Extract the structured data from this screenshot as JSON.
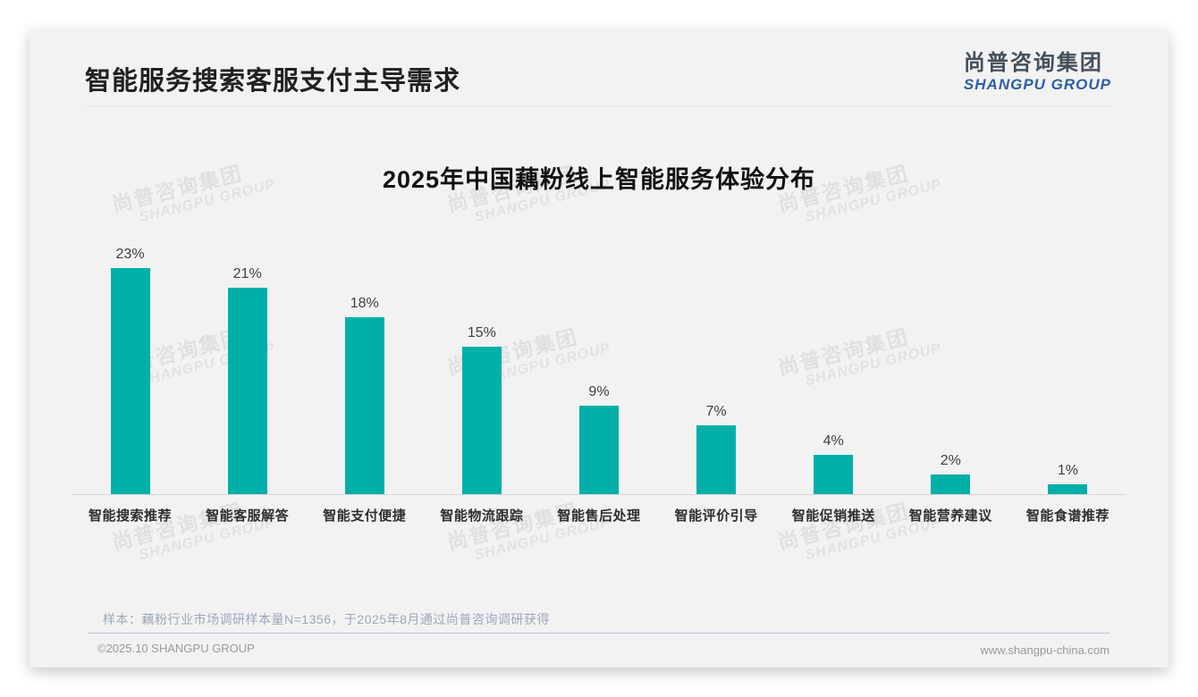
{
  "page": {
    "header": {
      "title": "智能服务搜索客服支付主导需求"
    },
    "logo": {
      "zh": "尚普咨询集团",
      "en": "SHANGPU GROUP"
    },
    "watermark": {
      "zh": "尚普咨询集团",
      "en": "SHANGPU GROUP"
    },
    "note": "样本：藕粉行业市场调研样本量N=1356，于2025年8月通过尚普咨询调研获得",
    "footer": {
      "left": "©2025.10 SHANGPU GROUP",
      "right": "www.shangpu-china.com"
    }
  },
  "colors": {
    "bar": "#00afa8",
    "logo_blue": "#2e5ea6",
    "card_background": "#f2f2f3",
    "note_text": "#9ca8b8"
  },
  "chart_data": {
    "type": "bar",
    "title": "2025年中国藕粉线上智能服务体验分布",
    "categories": [
      "智能搜索推荐",
      "智能客服解答",
      "智能支付便捷",
      "智能物流跟踪",
      "智能售后处理",
      "智能评价引导",
      "智能促销推送",
      "智能营养建议",
      "智能食谱推荐"
    ],
    "values": [
      23,
      21,
      18,
      15,
      9,
      7,
      4,
      2,
      1
    ],
    "unit": "%",
    "xlabel": "",
    "ylabel": "",
    "ylim": [
      0,
      25
    ],
    "grid": false,
    "legend": null,
    "data_labels_shown": true
  }
}
